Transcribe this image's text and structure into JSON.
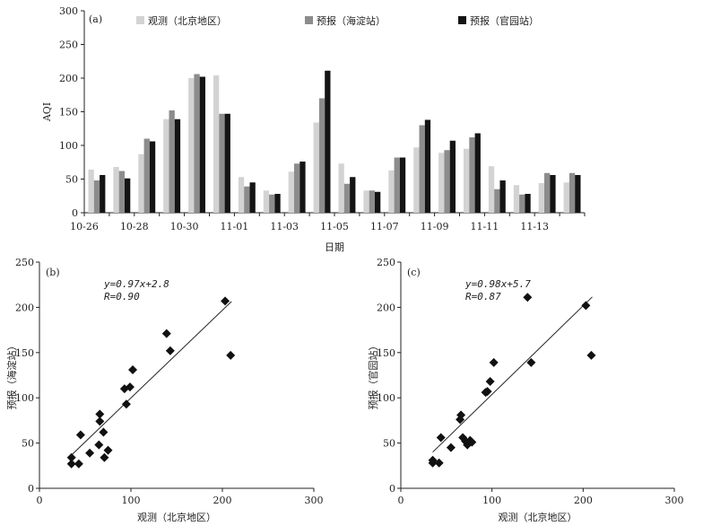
{
  "chart_data": [
    {
      "type": "bar",
      "panel_label": "(a)",
      "xlabel": "日期",
      "ylabel": "AQI",
      "ylim": [
        0,
        300
      ],
      "yticks": [
        0,
        50,
        100,
        150,
        200,
        250,
        300
      ],
      "categories": [
        "10-26",
        "10-27",
        "10-28",
        "10-29",
        "10-30",
        "10-31",
        "11-01",
        "11-02",
        "11-03",
        "11-04",
        "11-05",
        "11-06",
        "11-07",
        "11-08",
        "11-09",
        "11-10",
        "11-11",
        "11-12",
        "11-13",
        "11-14"
      ],
      "tick_labels": [
        "10-26",
        "10-28",
        "10-30",
        "11-01",
        "11-03",
        "11-05",
        "11-07",
        "11-09",
        "11-11",
        "11-13"
      ],
      "legend_position": "top",
      "grid": false,
      "series": [
        {
          "name": "观测（北京地区）",
          "color": "#d3d3d3",
          "values": [
            64,
            68,
            87,
            139,
            200,
            204,
            53,
            33,
            61,
            134,
            73,
            33,
            63,
            97,
            89,
            95,
            69,
            41,
            44,
            45
          ]
        },
        {
          "name": "预报（海淀站）",
          "color": "#8c8c8c",
          "values": [
            48,
            62,
            110,
            152,
            206,
            147,
            39,
            27,
            73,
            170,
            43,
            33,
            82,
            130,
            93,
            112,
            35,
            27,
            59,
            59
          ]
        },
        {
          "name": "预报（官园站）",
          "color": "#141414",
          "values": [
            56,
            51,
            106,
            139,
            202,
            147,
            45,
            28,
            76,
            211,
            53,
            31,
            82,
            138,
            107,
            118,
            48,
            28,
            56,
            56
          ]
        }
      ]
    },
    {
      "type": "scatter",
      "panel_label": "(b)",
      "xlabel": "观测（北京地区）",
      "ylabel": "预报（海淀站）",
      "xlim": [
        0,
        300
      ],
      "ylim": [
        0,
        250
      ],
      "xticks": [
        0,
        100,
        200,
        300
      ],
      "yticks": [
        0,
        50,
        100,
        150,
        200,
        250
      ],
      "equation": "y=0.97x+2.8",
      "r_text": "R=0.90",
      "fit": {
        "slope": 0.97,
        "intercept": 2.8,
        "x_range": [
          35,
          210
        ]
      },
      "points": [
        [
          35,
          27
        ],
        [
          35,
          34
        ],
        [
          43,
          27
        ],
        [
          45,
          59
        ],
        [
          55,
          39
        ],
        [
          65,
          48
        ],
        [
          66,
          74
        ],
        [
          66,
          82
        ],
        [
          70,
          62
        ],
        [
          71,
          34
        ],
        [
          75,
          42
        ],
        [
          93,
          110
        ],
        [
          95,
          93
        ],
        [
          99,
          112
        ],
        [
          102,
          131
        ],
        [
          139,
          171
        ],
        [
          143,
          152
        ],
        [
          203,
          207
        ],
        [
          209,
          147
        ]
      ]
    },
    {
      "type": "scatter",
      "panel_label": "(c)",
      "xlabel": "观测（北京地区）",
      "ylabel": "预报（官园站）",
      "xlim": [
        0,
        300
      ],
      "ylim": [
        0,
        250
      ],
      "xticks": [
        0,
        100,
        200,
        300
      ],
      "yticks": [
        0,
        50,
        100,
        150,
        200,
        250
      ],
      "equation": "y=0.98x+5.7",
      "r_text": "R=0.87",
      "fit": {
        "slope": 0.98,
        "intercept": 5.7,
        "x_range": [
          35,
          210
        ]
      },
      "points": [
        [
          35,
          28
        ],
        [
          35,
          31
        ],
        [
          42,
          28
        ],
        [
          44,
          56
        ],
        [
          55,
          45
        ],
        [
          65,
          76
        ],
        [
          66,
          81
        ],
        [
          68,
          56
        ],
        [
          71,
          52
        ],
        [
          73,
          48
        ],
        [
          76,
          53
        ],
        [
          78,
          51
        ],
        [
          93,
          106
        ],
        [
          95,
          107
        ],
        [
          98,
          118
        ],
        [
          102,
          139
        ],
        [
          139,
          211
        ],
        [
          143,
          139
        ],
        [
          203,
          202
        ],
        [
          209,
          147
        ]
      ]
    }
  ]
}
